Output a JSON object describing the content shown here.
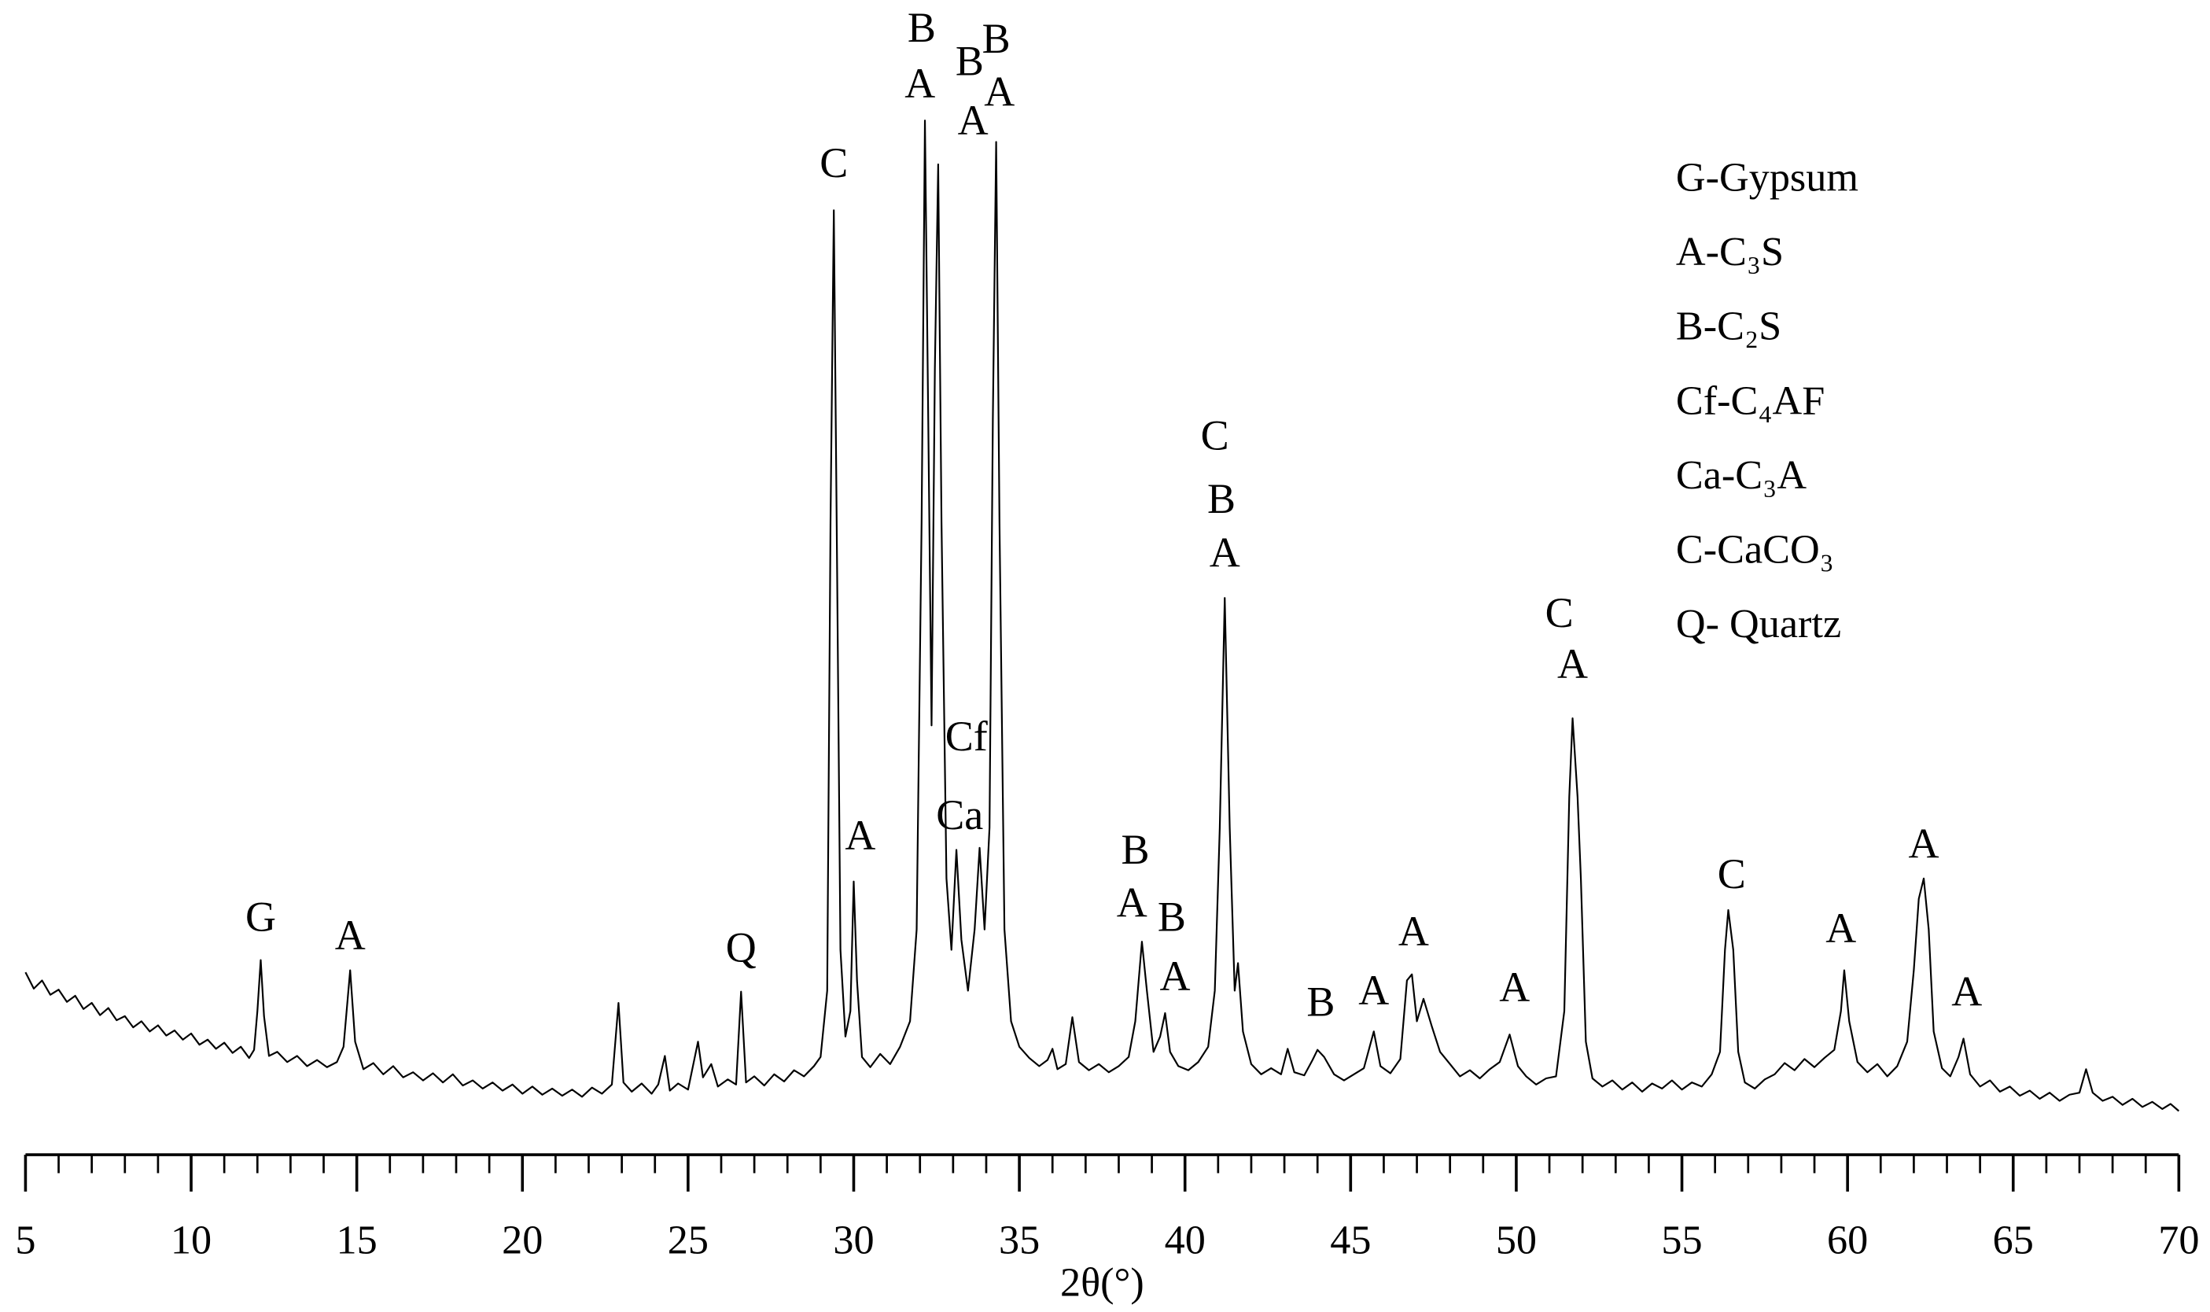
{
  "chart_data": {
    "type": "line",
    "xlabel": "2θ(°)",
    "color": "#000000",
    "xlim": [
      5,
      70
    ],
    "ylim": [
      0,
      110
    ],
    "xticks": [
      5,
      10,
      15,
      20,
      25,
      30,
      35,
      40,
      45,
      50,
      55,
      60,
      65,
      70
    ],
    "xminorticks": [
      6,
      7,
      8,
      9,
      11,
      12,
      13,
      14,
      16,
      17,
      18,
      19,
      21,
      22,
      23,
      24,
      26,
      27,
      28,
      29,
      31,
      32,
      33,
      34,
      36,
      37,
      38,
      39,
      41,
      42,
      43,
      44,
      46,
      47,
      48,
      49,
      51,
      52,
      53,
      54,
      56,
      57,
      58,
      59,
      61,
      62,
      63,
      64,
      66,
      67,
      68,
      69
    ],
    "x": [
      5,
      5.25,
      5.5,
      5.75,
      6,
      6.25,
      6.5,
      6.75,
      7,
      7.25,
      7.5,
      7.75,
      8,
      8.25,
      8.5,
      8.75,
      9,
      9.25,
      9.5,
      9.75,
      10,
      10.25,
      10.5,
      10.75,
      11,
      11.25,
      11.5,
      11.75,
      11.9,
      12,
      12.1,
      12.2,
      12.35,
      12.6,
      12.9,
      13.2,
      13.5,
      13.8,
      14.1,
      14.4,
      14.6,
      14.8,
      14.95,
      15.2,
      15.5,
      15.8,
      16.1,
      16.4,
      16.7,
      17,
      17.3,
      17.6,
      17.9,
      18.2,
      18.5,
      18.8,
      19.1,
      19.4,
      19.7,
      20,
      20.3,
      20.6,
      20.9,
      21.2,
      21.5,
      21.8,
      22.1,
      22.4,
      22.7,
      22.9,
      23.05,
      23.3,
      23.6,
      23.9,
      24.1,
      24.3,
      24.45,
      24.7,
      25,
      25.3,
      25.45,
      25.7,
      25.9,
      26.2,
      26.45,
      26.6,
      26.75,
      27,
      27.3,
      27.6,
      27.9,
      28.2,
      28.5,
      28.8,
      29,
      29.2,
      29.3,
      29.4,
      29.5,
      29.6,
      29.75,
      29.9,
      30,
      30.1,
      30.25,
      30.5,
      30.8,
      31.1,
      31.4,
      31.7,
      31.9,
      32.05,
      32.15,
      32.25,
      32.35,
      32.45,
      32.55,
      32.65,
      32.8,
      32.95,
      33.1,
      33.25,
      33.45,
      33.65,
      33.8,
      33.95,
      34.1,
      34.2,
      34.3,
      34.4,
      34.55,
      34.75,
      35,
      35.3,
      35.6,
      35.85,
      36,
      36.15,
      36.4,
      36.6,
      36.8,
      37.1,
      37.4,
      37.7,
      38,
      38.3,
      38.5,
      38.7,
      38.85,
      39.05,
      39.25,
      39.4,
      39.55,
      39.8,
      40.1,
      40.4,
      40.7,
      40.9,
      41.05,
      41.2,
      41.35,
      41.5,
      41.6,
      41.75,
      42,
      42.3,
      42.6,
      42.9,
      43.1,
      43.3,
      43.6,
      43.85,
      44,
      44.2,
      44.5,
      44.8,
      45.1,
      45.4,
      45.7,
      45.9,
      46.2,
      46.5,
      46.7,
      46.85,
      47,
      47.2,
      47.45,
      47.7,
      48,
      48.3,
      48.6,
      48.9,
      49.2,
      49.5,
      49.8,
      50.05,
      50.3,
      50.6,
      50.9,
      51.2,
      51.45,
      51.6,
      51.7,
      51.85,
      51.95,
      52.1,
      52.3,
      52.6,
      52.9,
      53.2,
      53.5,
      53.8,
      54.1,
      54.4,
      54.7,
      55,
      55.3,
      55.6,
      55.9,
      56.15,
      56.3,
      56.4,
      56.55,
      56.7,
      56.9,
      57.2,
      57.5,
      57.8,
      58.1,
      58.4,
      58.7,
      59,
      59.3,
      59.6,
      59.8,
      59.9,
      60.05,
      60.3,
      60.6,
      60.9,
      61.2,
      61.5,
      61.8,
      62,
      62.15,
      62.3,
      62.45,
      62.6,
      62.85,
      63.1,
      63.35,
      63.5,
      63.7,
      64,
      64.3,
      64.6,
      64.9,
      65.2,
      65.5,
      65.8,
      66.1,
      66.4,
      66.7,
      67,
      67.2,
      67.4,
      67.7,
      68,
      68.3,
      68.6,
      68.9,
      69.2,
      69.5,
      69.75,
      70
    ],
    "values": [
      15.8,
      14.2,
      15,
      13.6,
      14.1,
      12.9,
      13.5,
      12.2,
      12.8,
      11.6,
      12.3,
      11.1,
      11.5,
      10.4,
      11,
      10,
      10.6,
      9.6,
      10.1,
      9.2,
      9.8,
      8.7,
      9.2,
      8.3,
      8.9,
      7.9,
      8.5,
      7.4,
      8.2,
      12,
      17,
      11.5,
      7.6,
      8,
      7,
      7.6,
      6.6,
      7.2,
      6.5,
      7,
      8.5,
      16,
      9,
      6.3,
      6.9,
      5.8,
      6.6,
      5.5,
      6,
      5.2,
      5.9,
      5,
      5.8,
      4.7,
      5.2,
      4.4,
      5,
      4.2,
      4.8,
      3.9,
      4.6,
      3.8,
      4.4,
      3.7,
      4.3,
      3.6,
      4.5,
      3.9,
      4.8,
      12.8,
      5,
      4.1,
      4.9,
      3.9,
      4.8,
      7.6,
      4.2,
      4.9,
      4.3,
      9,
      5.5,
      6.8,
      4.6,
      5.3,
      4.8,
      13.9,
      5,
      5.6,
      4.7,
      5.8,
      5.1,
      6.2,
      5.6,
      6.6,
      7.5,
      14,
      60,
      90.5,
      55,
      18,
      9.5,
      12,
      24.7,
      15,
      7.5,
      6.5,
      7.8,
      6.8,
      8.5,
      11,
      20,
      60,
      99.3,
      70,
      40,
      75,
      95,
      60,
      25,
      18,
      27.8,
      19,
      14,
      20,
      28,
      20,
      30,
      70,
      97.2,
      60,
      20,
      11,
      8.5,
      7.4,
      6.6,
      7.2,
      8.3,
      6.3,
      6.8,
      11.4,
      7,
      6.2,
      6.8,
      6,
      6.6,
      7.5,
      11,
      18.8,
      14,
      8,
      9.5,
      11.8,
      8,
      6.6,
      6.2,
      7,
      8.5,
      14,
      30,
      52.5,
      30,
      14,
      16.7,
      10,
      6.8,
      5.8,
      6.4,
      5.8,
      8.3,
      6,
      5.7,
      7.2,
      8.2,
      7.5,
      5.8,
      5.2,
      5.8,
      6.4,
      10,
      6.6,
      5.9,
      7.3,
      15,
      15.6,
      11,
      13.2,
      10.5,
      8,
      6.8,
      5.6,
      6.2,
      5.4,
      6.3,
      7,
      9.7,
      6.6,
      5.6,
      4.8,
      5.4,
      5.6,
      12,
      33,
      40.7,
      33,
      25,
      9,
      5.4,
      4.6,
      5.2,
      4.3,
      5,
      4.1,
      4.9,
      4.4,
      5.2,
      4.3,
      5,
      4.6,
      5.8,
      8,
      18,
      21.9,
      18,
      8,
      5,
      4.4,
      5.3,
      5.8,
      6.9,
      6.2,
      7.3,
      6.5,
      7.4,
      8.2,
      12,
      16,
      11,
      7,
      6,
      6.8,
      5.6,
      6.6,
      9,
      16,
      23,
      25,
      20,
      10,
      6.4,
      5.6,
      7.5,
      9.3,
      5.8,
      4.6,
      5.2,
      4.1,
      4.6,
      3.7,
      4.2,
      3.4,
      4,
      3.2,
      3.8,
      4,
      6.3,
      4,
      3.2,
      3.6,
      2.8,
      3.4,
      2.6,
      3.1,
      2.4,
      2.9,
      2.2
    ],
    "annotations": [
      {
        "text": "G",
        "x": 12.1,
        "y": 20.8
      },
      {
        "text": "A",
        "x": 14.8,
        "y": 19
      },
      {
        "text": "Q",
        "x": 26.6,
        "y": 17.8
      },
      {
        "text": "C",
        "x": 29.4,
        "y": 94.7
      },
      {
        "text": "A",
        "x": 30.2,
        "y": 28.8
      },
      {
        "text": "B",
        "x": 32.05,
        "y": 108
      },
      {
        "text": "A",
        "x": 32.0,
        "y": 102.5
      },
      {
        "text": "B",
        "x": 33.5,
        "y": 104.7
      },
      {
        "text": "A",
        "x": 33.6,
        "y": 98.9
      },
      {
        "text": "B",
        "x": 34.3,
        "y": 106.9
      },
      {
        "text": "A",
        "x": 34.4,
        "y": 101.7
      },
      {
        "text": "Cf",
        "x": 33.4,
        "y": 38.5
      },
      {
        "text": "Ca",
        "x": 33.2,
        "y": 30.8
      },
      {
        "text": "B",
        "x": 38.5,
        "y": 27.4
      },
      {
        "text": "A",
        "x": 38.4,
        "y": 22.2
      },
      {
        "text": "B",
        "x": 39.6,
        "y": 20.8
      },
      {
        "text": "A",
        "x": 39.7,
        "y": 15
      },
      {
        "text": "C",
        "x": 40.9,
        "y": 68
      },
      {
        "text": "B",
        "x": 41.1,
        "y": 61.8
      },
      {
        "text": "A",
        "x": 41.2,
        "y": 56.5
      },
      {
        "text": "B",
        "x": 44.1,
        "y": 12.5
      },
      {
        "text": "A",
        "x": 45.7,
        "y": 13.6
      },
      {
        "text": "A",
        "x": 46.9,
        "y": 19.4
      },
      {
        "text": "A",
        "x": 49.95,
        "y": 13.9
      },
      {
        "text": "C",
        "x": 51.3,
        "y": 50.6
      },
      {
        "text": "A",
        "x": 51.7,
        "y": 45.6
      },
      {
        "text": "C",
        "x": 56.5,
        "y": 25
      },
      {
        "text": "A",
        "x": 59.8,
        "y": 19.7
      },
      {
        "text": "A",
        "x": 62.3,
        "y": 28
      },
      {
        "text": "A",
        "x": 63.6,
        "y": 13.5
      }
    ],
    "key": [
      "G-Gypsum",
      "A-C₃S",
      "B-C₂S",
      "Cf-C₄AF",
      "Ca-C₃A",
      "C-CaCO₃",
      "Q- Quartz"
    ]
  }
}
